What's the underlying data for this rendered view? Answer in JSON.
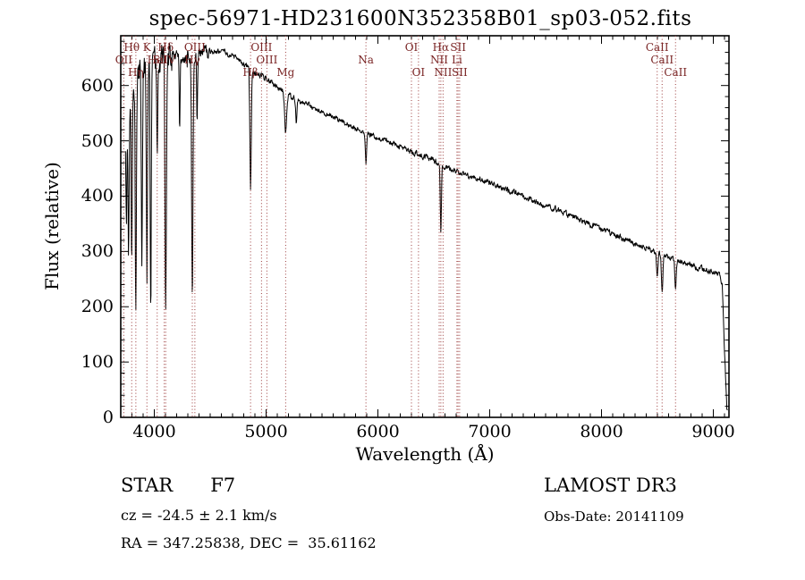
{
  "chart_data": {
    "type": "line",
    "title": "spec-56971-HD231600N352358B01_sp03-052.fits",
    "xlabel": "Wavelength (Å)",
    "ylabel": "Flux (relative)",
    "xlim": [
      3700,
      9140
    ],
    "ylim": [
      0,
      690
    ],
    "xticks": [
      4000,
      5000,
      6000,
      7000,
      8000,
      9000
    ],
    "yticks": [
      0,
      100,
      200,
      300,
      400,
      500,
      600
    ],
    "grid": false,
    "legend": "none",
    "curve_color": "#000000",
    "marker_color": "#9b3b3b",
    "marker_label_color": "#7a2525",
    "continuum": [
      [
        3740,
        480
      ],
      [
        3800,
        600
      ],
      [
        3850,
        618
      ],
      [
        3900,
        628
      ],
      [
        3950,
        638
      ],
      [
        4000,
        645
      ],
      [
        4100,
        650
      ],
      [
        4200,
        652
      ],
      [
        4300,
        650
      ],
      [
        4400,
        658
      ],
      [
        4500,
        660
      ],
      [
        4600,
        662
      ],
      [
        4700,
        655
      ],
      [
        4800,
        640
      ],
      [
        4900,
        622
      ],
      [
        5000,
        612
      ],
      [
        5100,
        598
      ],
      [
        5200,
        583
      ],
      [
        5300,
        573
      ],
      [
        5400,
        563
      ],
      [
        5500,
        553
      ],
      [
        5600,
        543
      ],
      [
        5700,
        533
      ],
      [
        5800,
        524
      ],
      [
        5900,
        514
      ],
      [
        6000,
        505
      ],
      [
        6100,
        497
      ],
      [
        6200,
        489
      ],
      [
        6300,
        481
      ],
      [
        6400,
        473
      ],
      [
        6500,
        464
      ],
      [
        6600,
        452
      ],
      [
        6700,
        446
      ],
      [
        6800,
        439
      ],
      [
        6900,
        431
      ],
      [
        7000,
        424
      ],
      [
        7100,
        416
      ],
      [
        7200,
        408
      ],
      [
        7300,
        400
      ],
      [
        7400,
        392
      ],
      [
        7500,
        383
      ],
      [
        7600,
        375
      ],
      [
        7700,
        366
      ],
      [
        7800,
        357
      ],
      [
        7900,
        349
      ],
      [
        8000,
        340
      ],
      [
        8100,
        331
      ],
      [
        8200,
        323
      ],
      [
        8300,
        314
      ],
      [
        8400,
        306
      ],
      [
        8500,
        297
      ],
      [
        8600,
        290
      ],
      [
        8700,
        283
      ],
      [
        8800,
        276
      ],
      [
        8900,
        268
      ],
      [
        9000,
        262
      ],
      [
        9060,
        258
      ],
      [
        9080,
        240
      ],
      [
        9100,
        120
      ],
      [
        9120,
        15
      ]
    ],
    "absorption_lines": [
      {
        "wl": 3750,
        "depth": 160,
        "sigma": 4
      },
      {
        "wl": 3770,
        "depth": 250,
        "sigma": 4.5
      },
      {
        "wl": 3798,
        "depth": 330,
        "sigma": 5
      },
      {
        "wl": 3835,
        "depth": 430,
        "sigma": 5
      },
      {
        "wl": 3889,
        "depth": 340,
        "sigma": 5
      },
      {
        "wl": 3934,
        "depth": 390,
        "sigma": 5
      },
      {
        "wl": 3968,
        "depth": 430,
        "sigma": 5
      },
      {
        "wl": 4026,
        "depth": 140,
        "sigma": 4
      },
      {
        "wl": 4102,
        "depth": 450,
        "sigma": 6
      },
      {
        "wl": 4227,
        "depth": 140,
        "sigma": 4
      },
      {
        "wl": 4340,
        "depth": 440,
        "sigma": 6
      },
      {
        "wl": 4383,
        "depth": 110,
        "sigma": 4
      },
      {
        "wl": 4861,
        "depth": 220,
        "sigma": 6
      },
      {
        "wl": 5175,
        "depth": 70,
        "sigma": 9
      },
      {
        "wl": 5270,
        "depth": 40,
        "sigma": 6
      },
      {
        "wl": 5893,
        "depth": 55,
        "sigma": 6
      },
      {
        "wl": 6563,
        "depth": 125,
        "sigma": 5
      },
      {
        "wl": 8498,
        "depth": 40,
        "sigma": 6
      },
      {
        "wl": 8542,
        "depth": 70,
        "sigma": 6
      },
      {
        "wl": 8662,
        "depth": 58,
        "sigma": 6
      }
    ],
    "noise": [
      {
        "below": 4150,
        "amp": 20
      },
      {
        "below": 4500,
        "amp": 9
      },
      {
        "below": 9200,
        "amp": 4
      }
    ],
    "line_markers": [
      {
        "label": "Hθ",
        "wl": 3798,
        "row": 0
      },
      {
        "label": "K",
        "wl": 3934,
        "row": 0
      },
      {
        "label": "Hδ",
        "wl": 4102,
        "row": 0
      },
      {
        "label": "OIII",
        "wl": 4363,
        "row": 0
      },
      {
        "label": "OIII",
        "wl": 4959,
        "row": 0
      },
      {
        "label": "OI",
        "wl": 6300,
        "row": 0
      },
      {
        "label": "Hα",
        "wl": 6563,
        "row": 0
      },
      {
        "label": "SII",
        "wl": 6717,
        "row": 0
      },
      {
        "label": "CaII",
        "wl": 8498,
        "row": 0
      },
      {
        "label": "OII",
        "wl": 3727,
        "row": 1
      },
      {
        "label": "HeI",
        "wl": 4026,
        "row": 1
      },
      {
        "label": "SiIV",
        "wl": 4089,
        "row": 1
      },
      {
        "label": "Hγ",
        "wl": 4340,
        "row": 1
      },
      {
        "label": "OIII",
        "wl": 5007,
        "row": 1
      },
      {
        "label": "Na",
        "wl": 5893,
        "row": 1
      },
      {
        "label": "NII",
        "wl": 6548,
        "row": 1
      },
      {
        "label": "Li",
        "wl": 6707,
        "row": 1
      },
      {
        "label": "CaII",
        "wl": 8542,
        "row": 1
      },
      {
        "label": "Hη",
        "wl": 3835,
        "row": 2
      },
      {
        "label": "Hβ",
        "wl": 4861,
        "row": 2
      },
      {
        "label": "Mg",
        "wl": 5175,
        "row": 2
      },
      {
        "label": "OI",
        "wl": 6363,
        "row": 2
      },
      {
        "label": "NII",
        "wl": 6583,
        "row": 2
      },
      {
        "label": "SII",
        "wl": 6731,
        "row": 2
      },
      {
        "label": "CaII",
        "wl": 8662,
        "row": 2
      }
    ]
  },
  "footer": {
    "object_type": "STAR",
    "subclass": "F7",
    "cz_label": "cz = -24.5 ± 2.1 km/s",
    "ra_dec_label": "RA = 347.25838, DEC =  35.61162",
    "survey": "LAMOST DR3",
    "obs_date_label": "Obs-Date: 20141109"
  }
}
